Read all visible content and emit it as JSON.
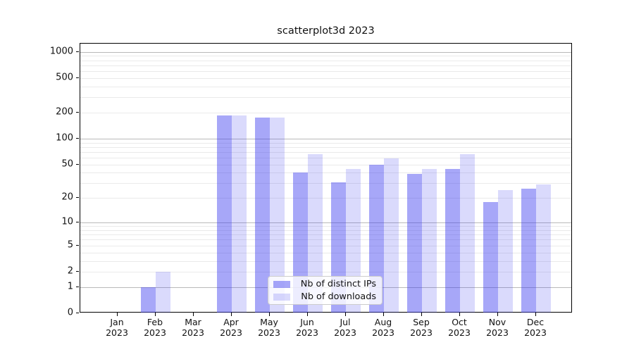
{
  "chart_data": {
    "type": "bar",
    "title": "scatterplot3d 2023",
    "categories": [
      "Jan",
      "Feb",
      "Mar",
      "Apr",
      "May",
      "Jun",
      "Jul",
      "Aug",
      "Sep",
      "Oct",
      "Nov",
      "Dec"
    ],
    "category_sublabel": "2023",
    "series": [
      {
        "name": "Nb of distinct IPs",
        "values": [
          0,
          1,
          0,
          187,
          176,
          40,
          31,
          50,
          39,
          44,
          18,
          26
        ],
        "color": "#3c3cf0",
        "alpha": 0.45
      },
      {
        "name": "Nb of downloads",
        "values": [
          0,
          2,
          0,
          186,
          174,
          66,
          44,
          59,
          44,
          66,
          25,
          29
        ],
        "color": "#3c3cf0",
        "alpha": 0.19
      }
    ],
    "y_ticks": [
      0,
      1,
      2,
      5,
      10,
      20,
      50,
      100,
      200,
      500,
      1000
    ],
    "y_major_gridlines": [
      1,
      10,
      100,
      1000
    ],
    "scale": "log10(value+1)",
    "ylim": [
      0,
      1000
    ],
    "xlabel": "",
    "ylabel": "",
    "grid": "horizontal",
    "legend_position": "inside-bottom-center",
    "colors": {
      "axis": "#000000",
      "minor_grid": "#eaeaea",
      "major_grid": "#b9b9b9",
      "background": "#ffffff"
    }
  }
}
